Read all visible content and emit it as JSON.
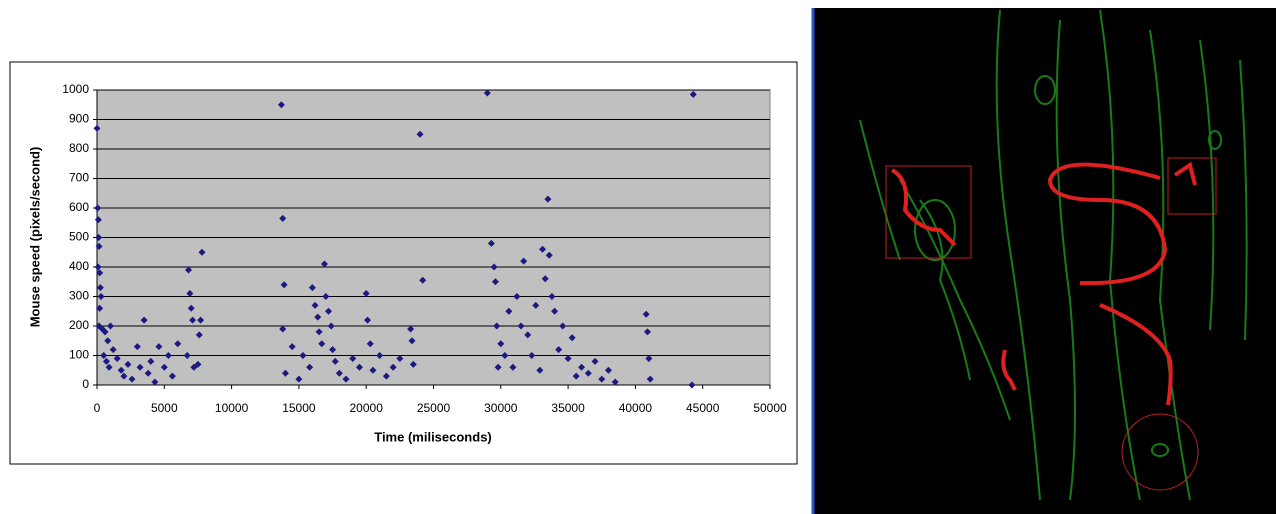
{
  "chart_data": {
    "type": "scatter",
    "x_label": "Time (miliseconds)",
    "y_label": "Mouse speed (pixels/second)",
    "xlim": [
      0,
      50000
    ],
    "xticks": [
      0,
      5000,
      10000,
      15000,
      20000,
      25000,
      30000,
      35000,
      40000,
      45000,
      50000
    ],
    "ylim": [
      0,
      1000
    ],
    "yticks": [
      0,
      100,
      200,
      300,
      400,
      500,
      600,
      700,
      800,
      900,
      1000
    ],
    "grid": true,
    "background": "#c0c0c0",
    "series": [
      {
        "color": "#1a1a80",
        "x": [
          0,
          50,
          100,
          120,
          150,
          80,
          200,
          250,
          300,
          200,
          150,
          400,
          600,
          800,
          1000,
          500,
          700,
          900,
          1200,
          1500,
          1800,
          2000,
          2300,
          2600,
          3000,
          3200,
          3500,
          3800,
          4000,
          4300,
          4600,
          5000,
          5300,
          5600,
          6000,
          6800,
          6900,
          7000,
          7100,
          6700,
          7200,
          7800,
          7700,
          7600,
          7500,
          13700,
          13800,
          13900,
          13800,
          14000,
          14500,
          15000,
          15300,
          15800,
          16000,
          16200,
          16400,
          16500,
          16700,
          16900,
          17000,
          17200,
          17400,
          17500,
          17700,
          18000,
          18500,
          19000,
          19500,
          20000,
          20100,
          20300,
          20500,
          21000,
          21500,
          22000,
          22500,
          23300,
          23400,
          23500,
          24000,
          24200,
          29000,
          29300,
          29500,
          29600,
          29700,
          29800,
          30000,
          30300,
          30600,
          30900,
          31200,
          31500,
          31700,
          32000,
          32300,
          32600,
          32900,
          33100,
          33300,
          33500,
          33600,
          33800,
          34000,
          34300,
          34600,
          35000,
          35300,
          35600,
          36000,
          36500,
          37000,
          37500,
          38000,
          38500,
          40800,
          40900,
          41000,
          41100,
          44200,
          44300
        ],
        "values": [
          870,
          600,
          560,
          500,
          470,
          400,
          380,
          330,
          300,
          260,
          200,
          190,
          180,
          150,
          200,
          100,
          80,
          60,
          120,
          90,
          50,
          30,
          70,
          20,
          130,
          60,
          220,
          40,
          80,
          10,
          130,
          60,
          100,
          30,
          140,
          390,
          310,
          260,
          220,
          100,
          60,
          450,
          220,
          170,
          70,
          950,
          565,
          340,
          190,
          40,
          130,
          20,
          100,
          60,
          330,
          270,
          230,
          180,
          140,
          410,
          300,
          250,
          200,
          120,
          80,
          40,
          20,
          90,
          60,
          310,
          220,
          140,
          50,
          100,
          30,
          60,
          90,
          190,
          150,
          70,
          850,
          355,
          990,
          480,
          400,
          350,
          200,
          60,
          140,
          100,
          250,
          60,
          300,
          200,
          420,
          170,
          100,
          270,
          50,
          460,
          360,
          630,
          440,
          300,
          250,
          120,
          200,
          90,
          160,
          30,
          60,
          40,
          80,
          20,
          50,
          10,
          240,
          180,
          90,
          20,
          0,
          985
        ]
      }
    ]
  }
}
